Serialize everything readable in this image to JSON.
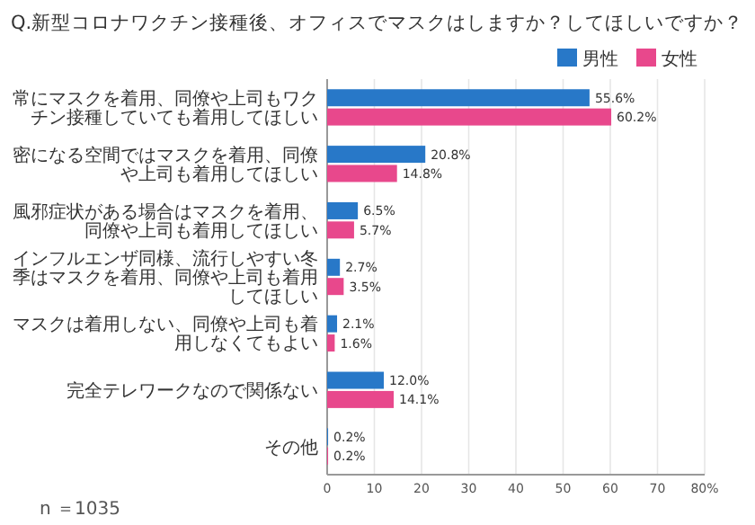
{
  "chart_data": {
    "type": "bar",
    "orientation": "horizontal",
    "title": "Q.新型コロナワクチン接種後、オフィスでマスクはしますか？してほしいですか？",
    "categories": [
      "常にマスクを着用、同僚や上司もワクチン接種していても着用してほしい",
      "密になる空間ではマスクを着用、同僚や上司も着用してほしい",
      "風邪症状がある場合はマスクを着用、同僚や上司も着用してほしい",
      "インフルエンザ同様、流行しやすい冬季はマスクを着用、同僚や上司も着用してほしい",
      "マスクは着用しない、同僚や上司も着用しなくてもよい",
      "完全テレワークなので関係ない",
      "その他"
    ],
    "series": [
      {
        "name": "男性",
        "color": "#2878c8",
        "values": [
          55.6,
          20.8,
          6.5,
          2.7,
          2.1,
          12.0,
          0.2
        ],
        "value_labels": [
          "55.6%",
          "20.8%",
          "6.5%",
          "2.7%",
          "2.1%",
          "12.0%",
          "0.2%"
        ]
      },
      {
        "name": "女性",
        "color": "#e8488c",
        "values": [
          60.2,
          14.8,
          5.7,
          3.5,
          1.6,
          14.1,
          0.2
        ],
        "value_labels": [
          "60.2%",
          "14.8%",
          "5.7%",
          "3.5%",
          "1.6%",
          "14.1%",
          "0.2%"
        ]
      }
    ],
    "xlim": [
      0,
      80
    ],
    "xticks": [
      0,
      10,
      20,
      30,
      40,
      50,
      60,
      70,
      {
        "value": 80,
        "label": "80%"
      }
    ],
    "grid": "x",
    "legend": "top right",
    "annotations": [
      "n ＝1035"
    ]
  }
}
